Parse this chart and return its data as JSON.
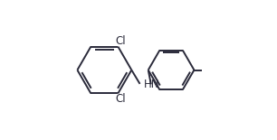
{
  "background_color": "#ffffff",
  "line_color": "#2a2a3a",
  "line_width": 1.4,
  "r1cx": 0.255,
  "r1cy": 0.5,
  "r1r": 0.195,
  "r2cx": 0.735,
  "r2cy": 0.5,
  "r2r": 0.165,
  "label_fontsize": 8.5,
  "hn_label": "HN",
  "cl1_label": "Cl",
  "cl2_label": "Cl"
}
